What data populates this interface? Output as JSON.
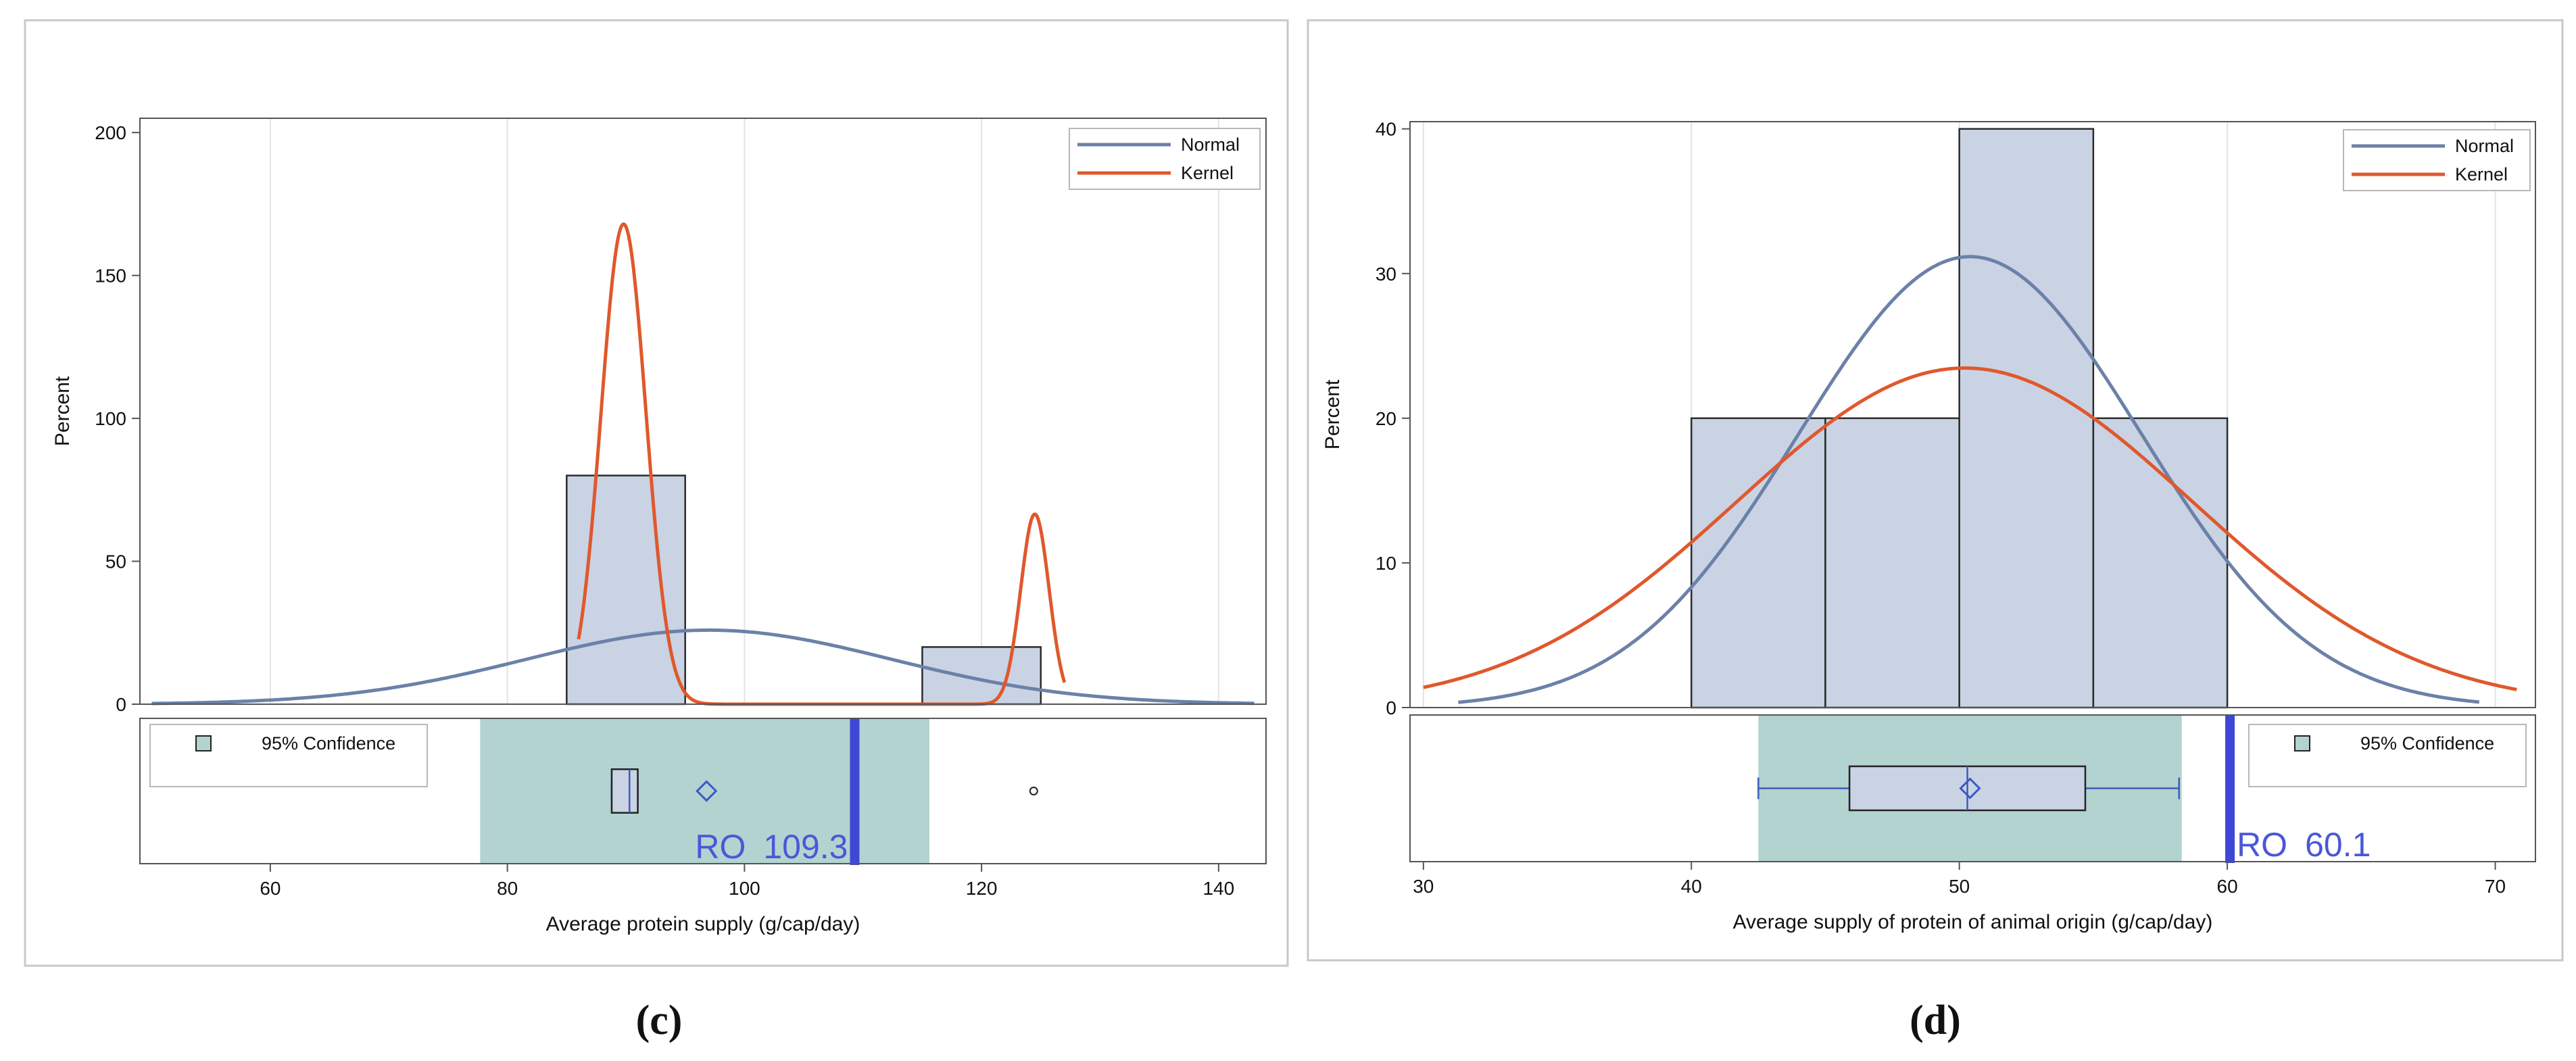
{
  "colors": {
    "frame": "#c8c8c8",
    "plot_border": "#555555",
    "grid": "#e3e3e3",
    "bar_fill": "#c9d3e4",
    "bar_stroke": "#2b2b2b",
    "normal": "#6b81a8",
    "kernel": "#e0582c",
    "band": "#b2d3d0",
    "ro_line": "#3e47d6",
    "ro_text": "#4a57d8",
    "box_fill": "#c9d3e4",
    "box_stroke": "#222222",
    "mean_marker": "#3a58c8",
    "whisker": "#3b5cb8",
    "text": "#111111"
  },
  "chart_data": [
    {
      "panel_label": "(c)",
      "type": "bar",
      "subtype": "histogram with normal and kernel density curves and box plot",
      "title": "",
      "xlabel": "Average protein supply (g/cap/day)",
      "ylabel": "Percent",
      "xlim": [
        49,
        144
      ],
      "ylim": [
        0,
        205
      ],
      "x_ticks": [
        60,
        80,
        100,
        120,
        140
      ],
      "y_ticks": [
        0,
        50,
        100,
        150,
        200
      ],
      "grid": "vertical",
      "legend": {
        "position": "top-right",
        "entries": [
          "Normal",
          "Kernel"
        ]
      },
      "bins": [
        {
          "from": 85,
          "to": 95,
          "value": 80
        },
        {
          "from": 115,
          "to": 125,
          "value": 20
        }
      ],
      "normal_curve": {
        "mean": 97,
        "sd": 15.4,
        "percent_scale": 1000,
        "x_range": [
          50,
          143
        ]
      },
      "kernel_curve": {
        "components": [
          {
            "center": 89.8,
            "sd": 1.9,
            "weight": 0.8
          },
          {
            "center": 124.5,
            "sd": 1.2,
            "weight": 0.2
          }
        ],
        "percent_scale": 1000,
        "x_range": [
          86,
          127
        ]
      },
      "inset": {
        "legend_entry": "95% Confidence",
        "legend_position": "top-left",
        "confidence_band": [
          77.7,
          115.6
        ],
        "box": {
          "q1": 88.8,
          "median": 90.3,
          "q3": 91.0
        },
        "whiskers": [
          88.8,
          91.0
        ],
        "mean": 96.8,
        "outliers": [
          124.4
        ],
        "reference": {
          "label": "RO",
          "value_label": "109.3",
          "value": 109.3
        }
      }
    },
    {
      "panel_label": "(d)",
      "type": "bar",
      "subtype": "histogram with normal and kernel density curves and box plot",
      "title": "",
      "xlabel": "Average supply of protein of animal origin (g/cap/day)",
      "ylabel": "Percent",
      "xlim": [
        29.5,
        71.5
      ],
      "ylim": [
        0,
        40.5
      ],
      "x_ticks": [
        30,
        40,
        50,
        60,
        70
      ],
      "y_ticks": [
        0,
        10,
        20,
        30,
        40
      ],
      "grid": "vertical",
      "legend": {
        "position": "top-right",
        "entries": [
          "Normal",
          "Kernel"
        ]
      },
      "bins": [
        {
          "from": 40,
          "to": 45,
          "value": 20
        },
        {
          "from": 45,
          "to": 50,
          "value": 20
        },
        {
          "from": 50,
          "to": 55,
          "value": 40
        },
        {
          "from": 55,
          "to": 60,
          "value": 20
        }
      ],
      "normal_curve": {
        "mean": 50.4,
        "sd": 6.4,
        "percent_scale": 500,
        "x_range": [
          31.3,
          69.4
        ]
      },
      "kernel_curve": {
        "mean": 50.2,
        "sd": 8.5,
        "percent_scale": 500,
        "x_range": [
          30,
          70.8
        ]
      },
      "inset": {
        "legend_entry": "95% Confidence",
        "legend_position": "top-right",
        "confidence_band": [
          42.5,
          58.3
        ],
        "box": {
          "q1": 45.9,
          "median": 50.3,
          "q3": 54.7
        },
        "whiskers": [
          42.5,
          58.2
        ],
        "mean": 50.4,
        "outliers": [],
        "reference": {
          "label": "RO",
          "value_label": "60.1",
          "value": 60.1
        }
      }
    }
  ]
}
